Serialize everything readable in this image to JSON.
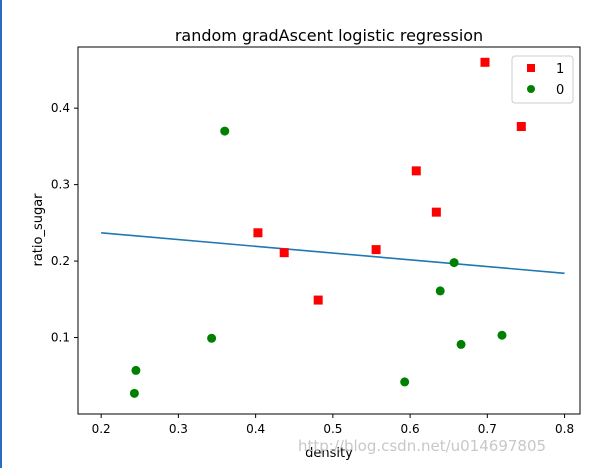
{
  "colors": {
    "positive": "#ff0000",
    "negative": "#008000",
    "line": "#1f77b4",
    "axis": "#000000",
    "watermark": "#c8c8c8",
    "page_edge": "#2a6cc4"
  },
  "watermark": "http://blog.csdn.net/u014697805",
  "chart_data": {
    "type": "scatter",
    "title": "random gradAscent logistic regression",
    "xlabel": "density",
    "ylabel": "ratio_sugar",
    "xlim": [
      0.17,
      0.82
    ],
    "ylim": [
      0.0,
      0.48
    ],
    "xticks": [
      0.2,
      0.3,
      0.4,
      0.5,
      0.6,
      0.7,
      0.8
    ],
    "yticks": [
      0.1,
      0.2,
      0.3,
      0.4
    ],
    "xtick_labels": [
      "0.2",
      "0.3",
      "0.4",
      "0.5",
      "0.6",
      "0.7",
      "0.8"
    ],
    "ytick_labels": [
      "0.1",
      "0.2",
      "0.3",
      "0.4"
    ],
    "grid": false,
    "legend": {
      "placement": "top-right",
      "entries": [
        "1",
        "0"
      ]
    },
    "series": [
      {
        "name": "1",
        "marker": "square",
        "color": "#ff0000",
        "points": [
          [
            0.697,
            0.46
          ],
          [
            0.744,
            0.376
          ],
          [
            0.608,
            0.318
          ],
          [
            0.634,
            0.264
          ],
          [
            0.403,
            0.237
          ],
          [
            0.437,
            0.211
          ],
          [
            0.556,
            0.215
          ],
          [
            0.481,
            0.149
          ]
        ]
      },
      {
        "name": "0",
        "marker": "circle",
        "color": "#008000",
        "points": [
          [
            0.36,
            0.37
          ],
          [
            0.657,
            0.198
          ],
          [
            0.639,
            0.161
          ],
          [
            0.719,
            0.103
          ],
          [
            0.666,
            0.091
          ],
          [
            0.343,
            0.099
          ],
          [
            0.245,
            0.057
          ],
          [
            0.243,
            0.027
          ],
          [
            0.593,
            0.042
          ]
        ]
      }
    ],
    "decision_line": {
      "color": "#1f77b4",
      "points": [
        [
          0.2,
          0.237
        ],
        [
          0.8,
          0.184
        ]
      ]
    }
  }
}
